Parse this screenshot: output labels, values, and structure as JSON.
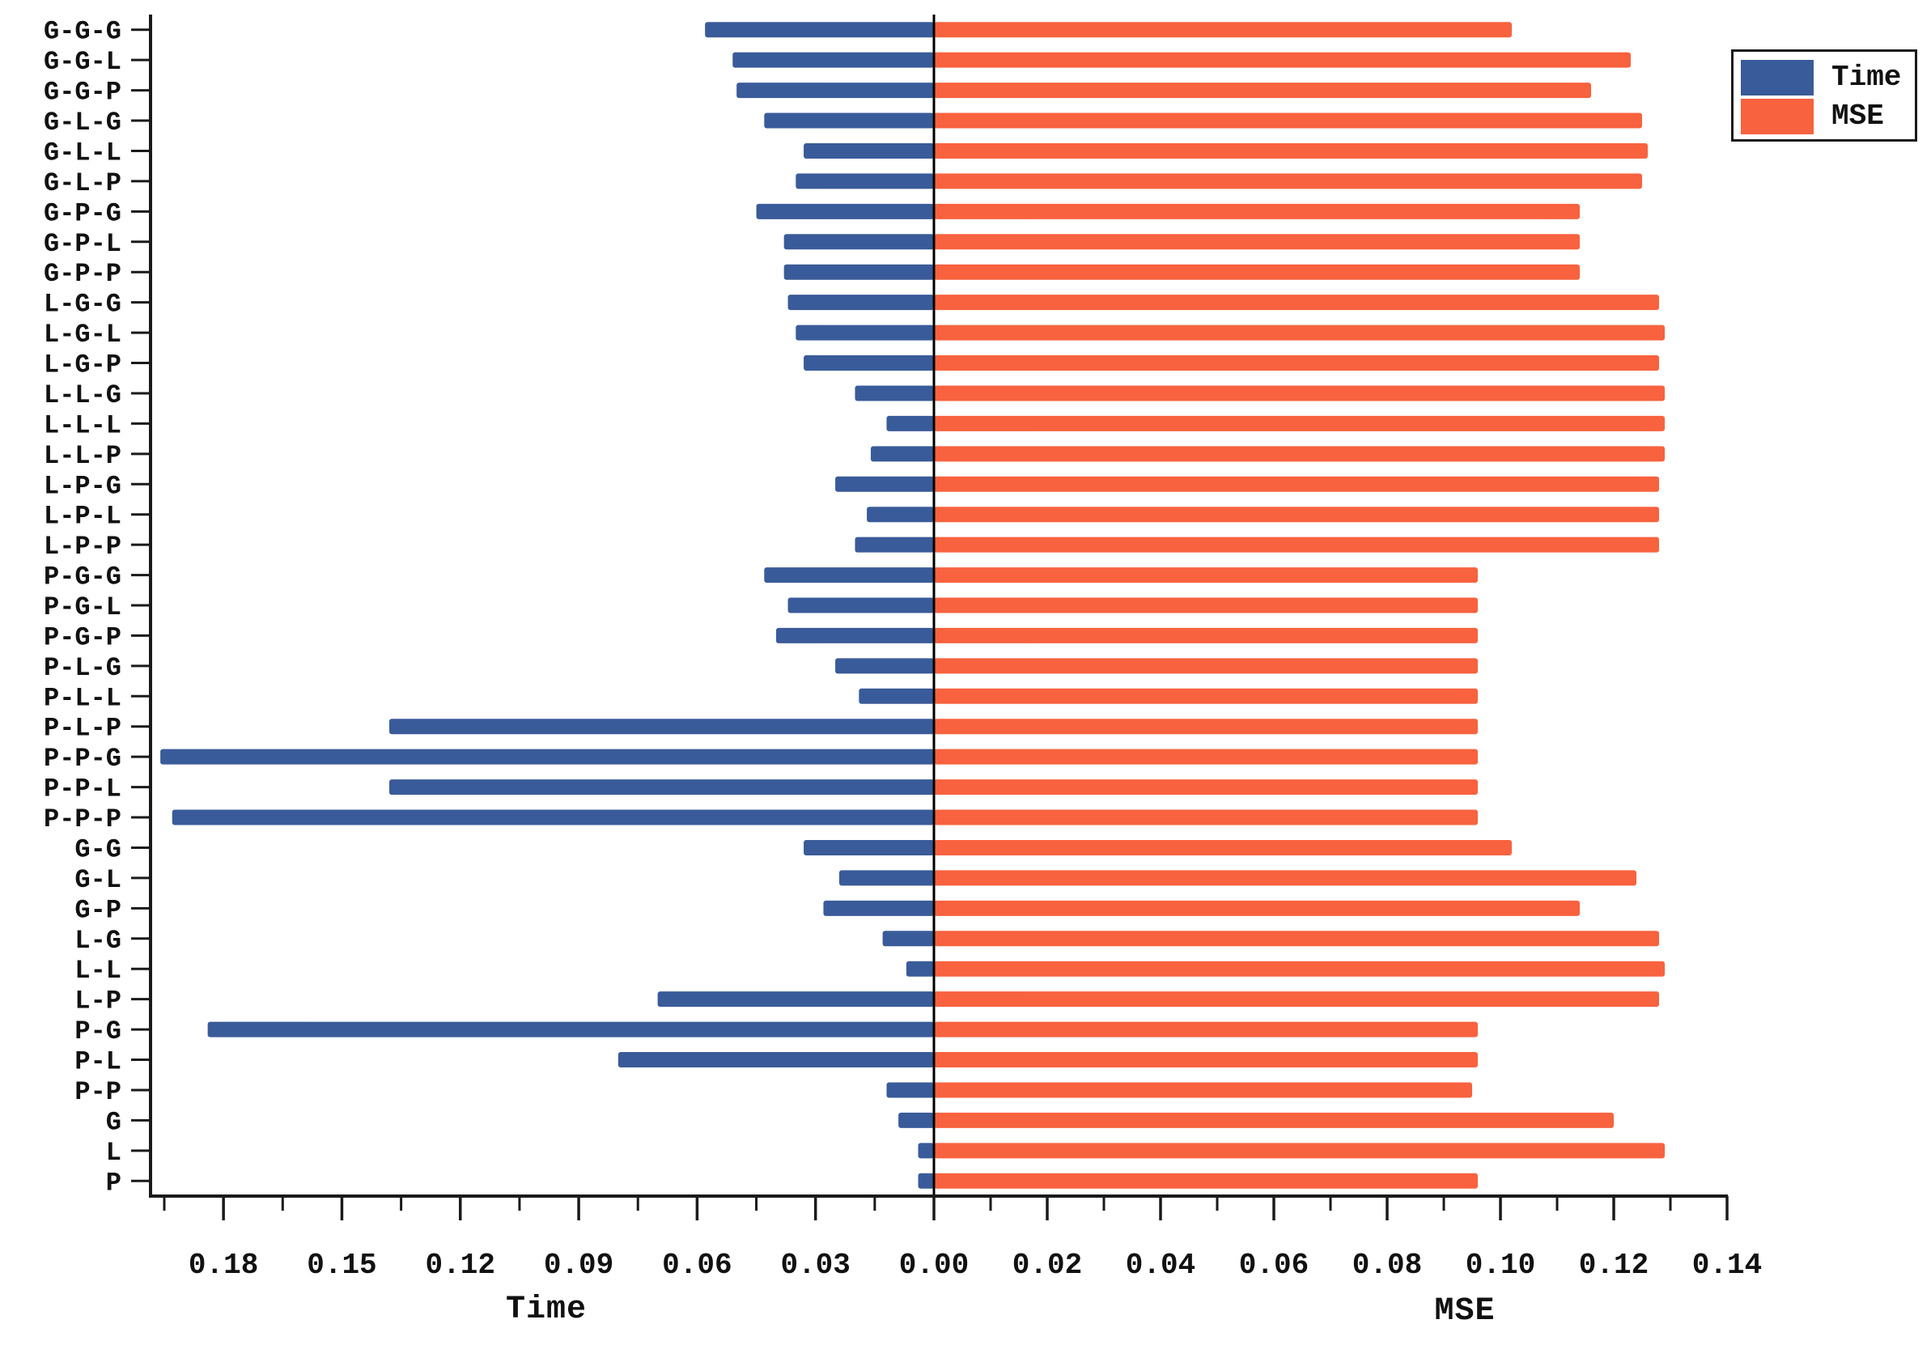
{
  "chart_data": {
    "type": "bar",
    "variant": "diverging-horizontal-tornado",
    "title": "",
    "categories": [
      "G-G-G",
      "G-G-L",
      "G-G-P",
      "G-L-G",
      "G-L-L",
      "G-L-P",
      "G-P-G",
      "G-P-L",
      "G-P-P",
      "L-G-G",
      "L-G-L",
      "L-G-P",
      "L-L-G",
      "L-L-L",
      "L-L-P",
      "L-P-G",
      "L-P-L",
      "L-P-P",
      "P-G-G",
      "P-G-L",
      "P-G-P",
      "P-L-G",
      "P-L-L",
      "P-L-P",
      "P-P-G",
      "P-P-L",
      "P-P-P",
      "G-G",
      "G-L",
      "G-P",
      "L-G",
      "L-L",
      "L-P",
      "P-G",
      "P-L",
      "P-P",
      "G",
      "L",
      "P"
    ],
    "series": [
      {
        "name": "Time",
        "side": "left",
        "color": "#3a5b99",
        "values": [
          0.058,
          0.051,
          0.05,
          0.043,
          0.033,
          0.035,
          0.045,
          0.038,
          0.038,
          0.037,
          0.035,
          0.033,
          0.02,
          0.012,
          0.016,
          0.025,
          0.017,
          0.02,
          0.043,
          0.037,
          0.04,
          0.025,
          0.019,
          0.138,
          0.196,
          0.138,
          0.193,
          0.033,
          0.024,
          0.028,
          0.013,
          0.007,
          0.07,
          0.184,
          0.08,
          0.012,
          0.009,
          0.004,
          0.004
        ]
      },
      {
        "name": "MSE",
        "side": "right",
        "color": "#f8623e",
        "values": [
          0.102,
          0.123,
          0.116,
          0.125,
          0.126,
          0.125,
          0.114,
          0.114,
          0.114,
          0.128,
          0.129,
          0.128,
          0.129,
          0.129,
          0.129,
          0.128,
          0.128,
          0.128,
          0.096,
          0.096,
          0.096,
          0.096,
          0.096,
          0.096,
          0.096,
          0.096,
          0.096,
          0.102,
          0.124,
          0.114,
          0.128,
          0.129,
          0.128,
          0.096,
          0.096,
          0.095,
          0.12,
          0.129,
          0.096
        ]
      }
    ],
    "left_axis": {
      "title": "Time",
      "tick_labels": [
        "0.18",
        "0.15",
        "0.12",
        "0.09",
        "0.06",
        "0.03"
      ],
      "tick_values": [
        0.18,
        0.15,
        0.12,
        0.09,
        0.06,
        0.03
      ],
      "minor_tick_values": [
        0.195,
        0.165,
        0.135,
        0.105,
        0.075,
        0.045,
        0.015
      ],
      "range": [
        0,
        0.1986
      ]
    },
    "right_axis": {
      "title": "MSE",
      "tick_labels": [
        "0.00",
        "0.02",
        "0.04",
        "0.06",
        "0.08",
        "0.10",
        "0.12",
        "0.14"
      ],
      "tick_values": [
        0.0,
        0.02,
        0.04,
        0.06,
        0.08,
        0.1,
        0.12,
        0.14
      ],
      "minor_tick_values": [
        0.01,
        0.03,
        0.05,
        0.07,
        0.09,
        0.11,
        0.13
      ],
      "range": [
        0,
        0.14
      ]
    },
    "legend": {
      "position": "top-right",
      "entries": [
        {
          "label": "Time",
          "color": "#3a5b99"
        },
        {
          "label": "MSE",
          "color": "#f8623e"
        }
      ]
    },
    "axis_color": "#1a1a1a",
    "zero_line_color": "#000000",
    "grid": false
  }
}
